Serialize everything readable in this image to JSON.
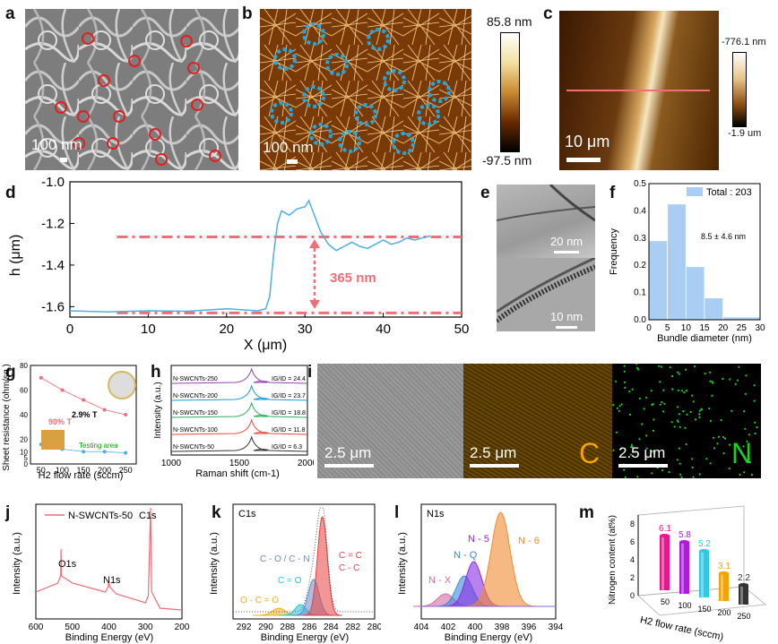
{
  "panels": {
    "a": {
      "letter": "a",
      "scale": "100 nm",
      "circles": 14
    },
    "b": {
      "letter": "b",
      "scale": "100 nm",
      "cbar_max": "85.8 nm",
      "cbar_min": "-97.5 nm"
    },
    "c": {
      "letter": "c",
      "scale": "10 μm",
      "cbar_max": "-776.1 nm",
      "cbar_min": "-1.9 um"
    },
    "d": {
      "letter": "d",
      "annotation": "365 nm"
    },
    "e": {
      "letter": "e",
      "scale_top": "20 nm",
      "scale_bottom": "10 nm"
    },
    "f": {
      "letter": "f",
      "legend": "Total : 203",
      "annotation": "8.5 ± 4.6 nm"
    },
    "g": {
      "letter": "g",
      "t1": "90% T",
      "t2": "2.9% T",
      "area": "Testing area"
    },
    "h": {
      "letter": "h"
    },
    "i": {
      "letter": "i",
      "scale1": "2.5 μm",
      "scale2": "2.5 μm",
      "scale3": "2.5 μm",
      "el_c": "C",
      "el_n": "N"
    },
    "j": {
      "letter": "j",
      "legend": "N-SWCNTs-50",
      "peaks": [
        "C1s",
        "O1s",
        "N1s"
      ]
    },
    "k": {
      "letter": "k",
      "title": "C1s",
      "lab1": "C - O / C - N",
      "lab2": "C = C",
      "lab3": "C - C",
      "lab4": "C = O",
      "lab5": "O - C = O"
    },
    "l": {
      "letter": "l",
      "title": "N1s",
      "lab1": "N - X",
      "lab2": "N - Q",
      "lab3": "N - 5",
      "lab4": "N - 6"
    },
    "m": {
      "letter": "m"
    }
  },
  "colors": {
    "pink": "#f06e78",
    "blue_line": "#4db0e8",
    "hist": "#a9cdf3",
    "cyan_marker": "#22a8e0",
    "red_marker": "#e02020"
  },
  "chart_data": [
    {
      "id": "d",
      "type": "line",
      "xlabel": "X (μm)",
      "ylabel": "h (μm)",
      "xlim": [
        0,
        50
      ],
      "ylim": [
        -1.65,
        -1.0
      ],
      "xticks": [
        "0",
        "10",
        "20",
        "30",
        "40",
        "50"
      ],
      "yticks": [
        "-1.0",
        "-1.2",
        "-1.4",
        "-1.6"
      ],
      "x": [
        0,
        5,
        10,
        15,
        20,
        22,
        24,
        25,
        25.5,
        26,
        26.5,
        27,
        28,
        29,
        30,
        30.5,
        31,
        31.5,
        32,
        33,
        34,
        35,
        36,
        37,
        38,
        39,
        40,
        41,
        42,
        43,
        44,
        45,
        46
      ],
      "y": [
        -1.62,
        -1.625,
        -1.62,
        -1.622,
        -1.61,
        -1.615,
        -1.62,
        -1.61,
        -1.55,
        -1.35,
        -1.2,
        -1.14,
        -1.16,
        -1.13,
        -1.12,
        -1.09,
        -1.14,
        -1.19,
        -1.24,
        -1.3,
        -1.33,
        -1.31,
        -1.29,
        -1.31,
        -1.32,
        -1.3,
        -1.28,
        -1.3,
        -1.29,
        -1.27,
        -1.28,
        -1.27,
        -1.26
      ],
      "ref_lines": [
        -1.265,
        -1.63
      ]
    },
    {
      "id": "f",
      "type": "bar",
      "xlabel": "Bundle diameter (nm)",
      "ylabel": "Frequency",
      "xlim": [
        0,
        30
      ],
      "ylim": [
        0,
        0.5
      ],
      "xticks": [
        "0",
        "5",
        "10",
        "15",
        "20",
        "25",
        "30"
      ],
      "yticks": [
        "0.0",
        "0.1",
        "0.2",
        "0.3",
        "0.4",
        "0.5"
      ],
      "bins": [
        [
          0,
          5
        ],
        [
          5,
          10
        ],
        [
          10,
          15
        ],
        [
          15,
          20
        ],
        [
          20,
          30
        ]
      ],
      "values": [
        0.29,
        0.425,
        0.195,
        0.08,
        0.01
      ]
    },
    {
      "id": "g",
      "type": "scatter",
      "xlabel": "H2 flow rate (sccm)",
      "ylabel": "Sheet resistance (ohm/sq.)",
      "xlim": [
        25,
        275
      ],
      "ylim": [
        0,
        80
      ],
      "xticks": [
        "50",
        "100",
        "150",
        "200",
        "250"
      ],
      "yticks": [
        "0",
        "5",
        "10",
        "20",
        "40",
        "60",
        "80"
      ],
      "series": [
        {
          "x": [
            50,
            100,
            150,
            200,
            250
          ],
          "y": [
            70,
            60,
            52,
            44,
            40
          ]
        },
        {
          "x": [
            50,
            100,
            150,
            200,
            250
          ],
          "y": [
            16,
            12,
            10,
            10,
            9
          ]
        }
      ]
    },
    {
      "id": "h",
      "type": "line",
      "xlabel": "Raman shift (cm-1)",
      "ylabel": "Intensity (a.u.)",
      "xticks": [
        "1000",
        "1500",
        "2000"
      ],
      "series": [
        {
          "name": "N-SWCNTs-250",
          "ratio": "IG/ID = 24.4",
          "color": "#8e44ad"
        },
        {
          "name": "N-SWCNTs-200",
          "ratio": "IG/ID = 23.7",
          "color": "#1a9bd7"
        },
        {
          "name": "N-SWCNTs-150",
          "ratio": "IG/ID = 18.8",
          "color": "#27ae60"
        },
        {
          "name": "N-SWCNTs-100",
          "ratio": "IG/ID = 11.8",
          "color": "#e74c3c"
        },
        {
          "name": "N-SWCNTs-50",
          "ratio": "IG/ID = 6.3",
          "color": "#333333"
        }
      ]
    },
    {
      "id": "j",
      "type": "line",
      "xlabel": "Binding Energy (eV)",
      "ylabel": "Intensity (a.u.)",
      "xticks": [
        "600",
        "500",
        "400",
        "300",
        "200"
      ]
    },
    {
      "id": "k",
      "type": "area",
      "xlabel": "Binding Energy (eV)",
      "ylabel": "Intensity (a.u.)",
      "xticks": [
        "292",
        "290",
        "288",
        "286",
        "284",
        "282",
        "280"
      ]
    },
    {
      "id": "l",
      "type": "area",
      "xlabel": "Binding Energy (eV)",
      "ylabel": "Intensity (a.u.)",
      "xticks": [
        "404",
        "402",
        "400",
        "398",
        "396",
        "394"
      ]
    },
    {
      "id": "m",
      "type": "bar",
      "xlabel": "H2 flow rate (sccm)",
      "ylabel": "Nitrogen content (at%)",
      "categories": [
        "50",
        "100",
        "150",
        "200",
        "250"
      ],
      "values": [
        6.1,
        5.8,
        5.2,
        3.1,
        2.2
      ],
      "value_labels": [
        "6.1",
        "5.8",
        "5.2",
        "3.1",
        "2.2"
      ],
      "yticks": [
        "0",
        "2",
        "4",
        "6",
        "8"
      ],
      "colors": [
        "#e8168c",
        "#b01ae0",
        "#2ec8e8",
        "#f5a300",
        "#333333"
      ]
    }
  ]
}
